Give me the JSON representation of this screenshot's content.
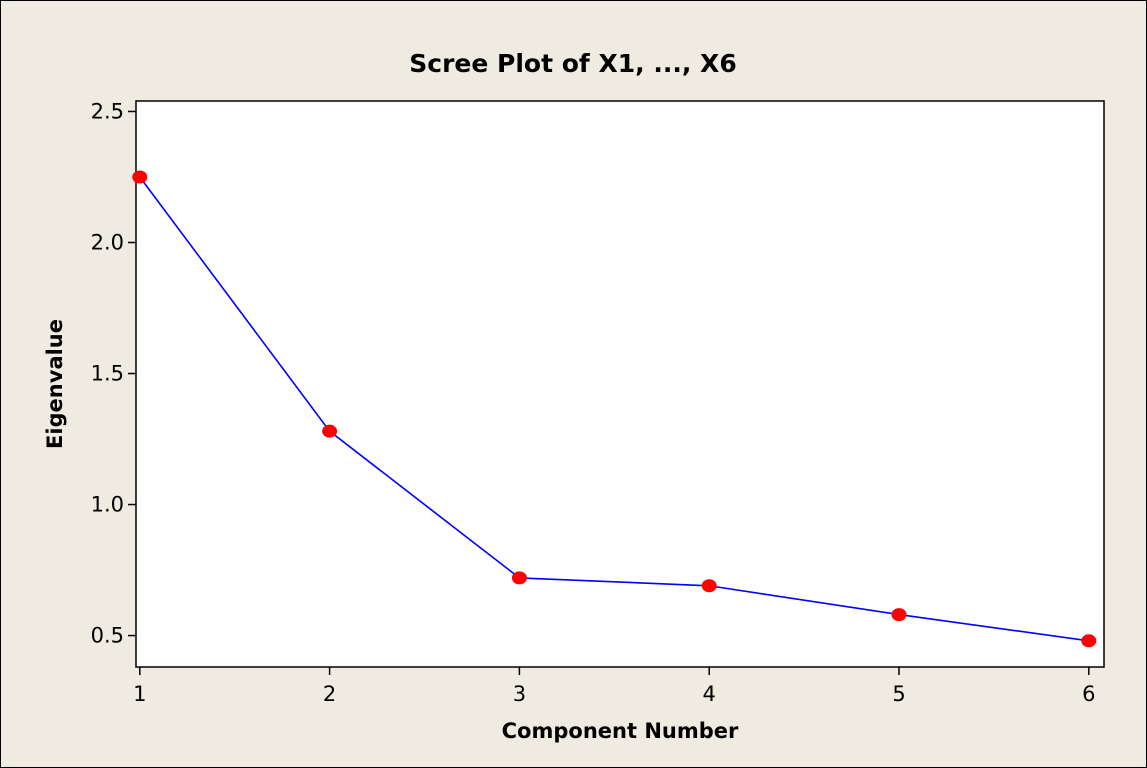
{
  "chart_data": {
    "type": "line",
    "title": "Scree Plot of X1, ..., X6",
    "xlabel": "Component Number",
    "ylabel": "Eigenvalue",
    "x": [
      1,
      2,
      3,
      4,
      5,
      6
    ],
    "series": [
      {
        "values": [
          2.25,
          1.28,
          0.72,
          0.69,
          0.58,
          0.48
        ]
      }
    ],
    "xticks": [
      "1",
      "2",
      "3",
      "4",
      "5",
      "6"
    ],
    "yticks": [
      "0.5",
      "1.0",
      "1.5",
      "2.0",
      "2.5"
    ],
    "xlim": [
      0.98,
      6.08
    ],
    "ylim": [
      0.38,
      2.54
    ],
    "grid": false,
    "legend": "none",
    "colors": {
      "page_background": "#efebe1",
      "plot_background": "#ffffff",
      "frame": "#000000",
      "line": "#0000ff",
      "marker": "#ff0000"
    }
  }
}
